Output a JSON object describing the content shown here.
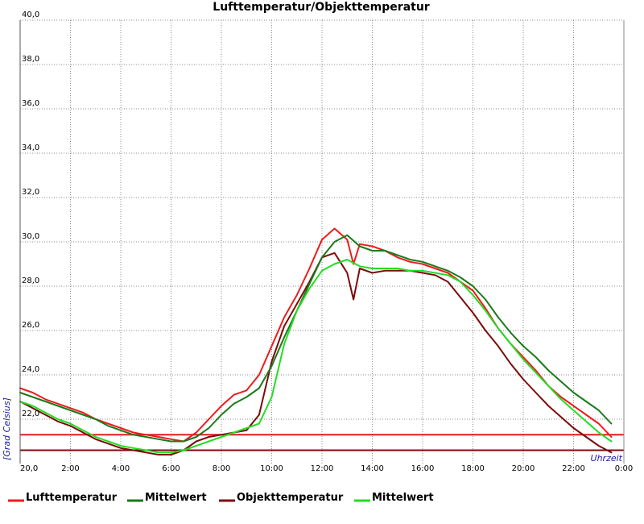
{
  "chart_data": {
    "type": "line",
    "title": "Lufttemperatur/Objekttemperatur",
    "xlabel": "Uhrzeit",
    "ylabel": "[Grad Celsius]",
    "xlim": [
      0,
      24
    ],
    "ylim": [
      20,
      40
    ],
    "grid": true,
    "legend_position": "bottom",
    "x_ticks": [
      {
        "x": 0,
        "label": "20,0"
      },
      {
        "x": 2,
        "label": "2:00"
      },
      {
        "x": 4,
        "label": "4:00"
      },
      {
        "x": 6,
        "label": "6:00"
      },
      {
        "x": 8,
        "label": "8:00"
      },
      {
        "x": 10,
        "label": "10:00"
      },
      {
        "x": 12,
        "label": "12:00"
      },
      {
        "x": 14,
        "label": "14:00"
      },
      {
        "x": 16,
        "label": "16:00"
      },
      {
        "x": 18,
        "label": "18:00"
      },
      {
        "x": 20,
        "label": "20:00"
      },
      {
        "x": 22,
        "label": "22:00"
      },
      {
        "x": 24,
        "label": "0:00"
      }
    ],
    "y_ticks": [
      {
        "y": 22,
        "label": "22,0"
      },
      {
        "y": 24,
        "label": "24,0"
      },
      {
        "y": 26,
        "label": "26,0"
      },
      {
        "y": 28,
        "label": "28,0"
      },
      {
        "y": 30,
        "label": "30,0"
      },
      {
        "y": 32,
        "label": "32,0"
      },
      {
        "y": 34,
        "label": "34,0"
      },
      {
        "y": 36,
        "label": "36,0"
      },
      {
        "y": 38,
        "label": "38,0"
      },
      {
        "y": 40,
        "label": "40,0"
      }
    ],
    "reference_lines": [
      {
        "y": 21.3,
        "color": "#e31c1c"
      },
      {
        "y": 20.6,
        "color": "#7a0c0c"
      }
    ],
    "series": [
      {
        "name": "Lufttemperatur",
        "color": "#ee1c1c",
        "x": [
          0,
          0.5,
          1,
          1.5,
          2,
          2.5,
          3,
          3.5,
          4,
          4.5,
          5,
          5.5,
          6,
          6.5,
          7,
          7.5,
          8,
          8.5,
          9,
          9.5,
          10,
          10.5,
          11,
          11.5,
          12,
          12.5,
          13,
          13.25,
          13.5,
          14,
          14.5,
          15,
          15.5,
          16,
          16.5,
          17,
          17.5,
          18,
          18.5,
          19,
          19.5,
          20,
          20.5,
          21,
          21.5,
          22,
          22.5,
          23,
          23.5
        ],
        "y": [
          23.4,
          23.2,
          22.9,
          22.7,
          22.5,
          22.3,
          22.0,
          21.8,
          21.6,
          21.4,
          21.3,
          21.2,
          21.1,
          21.0,
          21.4,
          22.0,
          22.6,
          23.1,
          23.3,
          24.0,
          25.3,
          26.6,
          27.6,
          28.8,
          30.1,
          30.6,
          30.1,
          29.0,
          29.9,
          29.8,
          29.6,
          29.3,
          29.1,
          29.0,
          28.8,
          28.6,
          28.2,
          27.8,
          27.0,
          26.1,
          25.4,
          24.8,
          24.2,
          23.5,
          23.0,
          22.6,
          22.2,
          21.8,
          21.2
        ]
      },
      {
        "name": "Mittelwert",
        "color": "#1a7a1a",
        "x": [
          0,
          0.5,
          1,
          1.5,
          2,
          2.5,
          3,
          3.5,
          4,
          4.5,
          5,
          5.5,
          6,
          6.5,
          7,
          7.5,
          8,
          8.5,
          9,
          9.5,
          10,
          10.5,
          11,
          11.5,
          12,
          12.5,
          13,
          13.5,
          14,
          14.5,
          15,
          15.5,
          16,
          16.5,
          17,
          17.5,
          18,
          18.5,
          19,
          19.5,
          20,
          20.5,
          21,
          21.5,
          22,
          22.5,
          23,
          23.5
        ],
        "y": [
          23.2,
          23.0,
          22.8,
          22.6,
          22.4,
          22.2,
          22.0,
          21.7,
          21.5,
          21.3,
          21.2,
          21.1,
          21.0,
          21.0,
          21.2,
          21.6,
          22.2,
          22.7,
          23.0,
          23.4,
          24.4,
          25.7,
          26.9,
          28.1,
          29.3,
          30.0,
          30.3,
          29.8,
          29.6,
          29.6,
          29.4,
          29.2,
          29.1,
          28.9,
          28.7,
          28.4,
          28.0,
          27.4,
          26.6,
          25.9,
          25.3,
          24.8,
          24.2,
          23.7,
          23.2,
          22.8,
          22.4,
          21.8
        ]
      },
      {
        "name": "Objekttemperatur",
        "color": "#7a0c0c",
        "x": [
          0,
          0.5,
          1,
          1.5,
          2,
          2.5,
          3,
          3.5,
          4,
          4.5,
          5,
          5.5,
          6,
          6.5,
          7,
          7.5,
          8,
          8.5,
          9,
          9.5,
          10,
          10.5,
          11,
          11.5,
          12,
          12.5,
          13,
          13.25,
          13.5,
          14,
          14.5,
          15,
          15.5,
          16,
          16.5,
          17,
          17.5,
          18,
          18.5,
          19,
          19.5,
          20,
          20.5,
          21,
          21.5,
          22,
          22.5,
          23,
          23.5
        ],
        "y": [
          22.8,
          22.5,
          22.2,
          21.9,
          21.7,
          21.4,
          21.1,
          20.9,
          20.7,
          20.6,
          20.5,
          20.4,
          20.4,
          20.6,
          21.0,
          21.2,
          21.3,
          21.4,
          21.5,
          22.2,
          24.6,
          26.2,
          27.2,
          28.2,
          29.3,
          29.5,
          28.6,
          27.4,
          28.8,
          28.6,
          28.7,
          28.7,
          28.7,
          28.6,
          28.5,
          28.2,
          27.5,
          26.8,
          26.0,
          25.3,
          24.5,
          23.8,
          23.2,
          22.6,
          22.1,
          21.6,
          21.2,
          20.8,
          20.5
        ]
      },
      {
        "name": "Mittelwert",
        "color": "#22dd22",
        "x": [
          0,
          0.5,
          1,
          1.5,
          2,
          2.5,
          3,
          3.5,
          4,
          4.5,
          5,
          5.5,
          6,
          6.5,
          7,
          7.5,
          8,
          8.5,
          9,
          9.5,
          10,
          10.5,
          11,
          11.5,
          12,
          12.5,
          13,
          13.5,
          14,
          14.5,
          15,
          15.5,
          16,
          16.5,
          17,
          17.5,
          18,
          18.5,
          19,
          19.5,
          20,
          20.5,
          21,
          21.5,
          22,
          22.5,
          23,
          23.5
        ],
        "y": [
          22.8,
          22.6,
          22.3,
          22.0,
          21.8,
          21.5,
          21.2,
          21.0,
          20.8,
          20.7,
          20.6,
          20.5,
          20.5,
          20.6,
          20.8,
          21.0,
          21.2,
          21.4,
          21.6,
          21.8,
          23.0,
          25.4,
          26.9,
          27.9,
          28.7,
          29.0,
          29.2,
          28.9,
          28.8,
          28.8,
          28.8,
          28.7,
          28.7,
          28.6,
          28.5,
          28.2,
          27.6,
          26.9,
          26.1,
          25.4,
          24.7,
          24.1,
          23.5,
          22.9,
          22.4,
          21.9,
          21.4,
          21.0
        ]
      }
    ]
  }
}
